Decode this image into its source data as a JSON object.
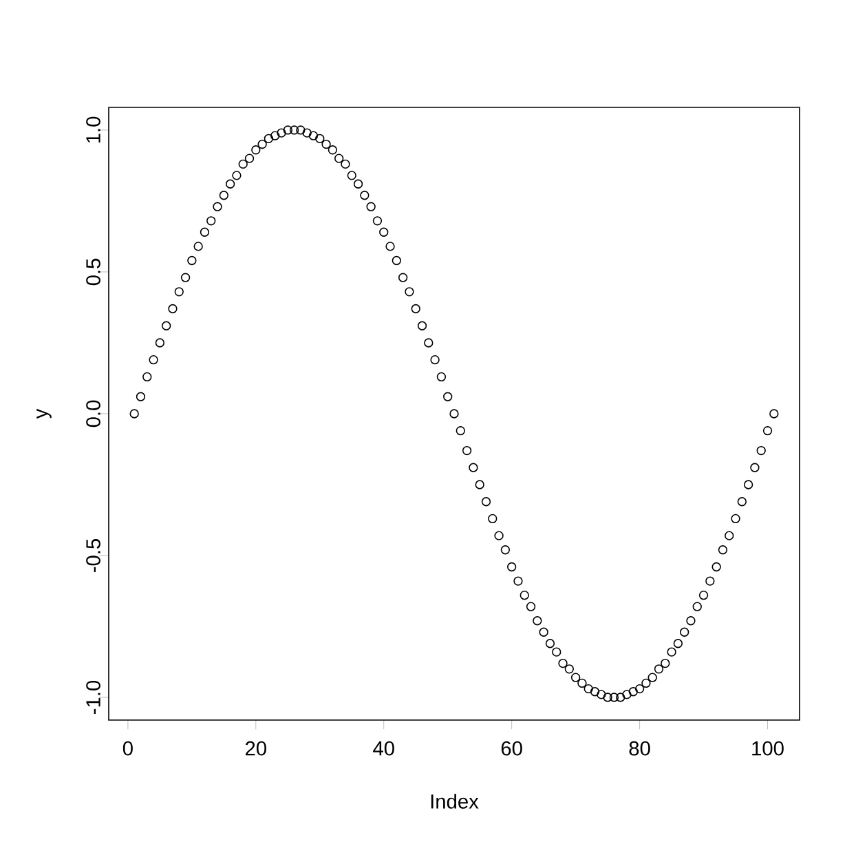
{
  "chart_data": {
    "type": "scatter",
    "xlabel": "Index",
    "ylabel": "y",
    "x": [
      1,
      2,
      3,
      4,
      5,
      6,
      7,
      8,
      9,
      10,
      11,
      12,
      13,
      14,
      15,
      16,
      17,
      18,
      19,
      20,
      21,
      22,
      23,
      24,
      25,
      26,
      27,
      28,
      29,
      30,
      31,
      32,
      33,
      34,
      35,
      36,
      37,
      38,
      39,
      40,
      41,
      42,
      43,
      44,
      45,
      46,
      47,
      48,
      49,
      50,
      51,
      52,
      53,
      54,
      55,
      56,
      57,
      58,
      59,
      60,
      61,
      62,
      63,
      64,
      65,
      66,
      67,
      68,
      69,
      70,
      71,
      72,
      73,
      74,
      75,
      76,
      77,
      78,
      79,
      80,
      81,
      82,
      83,
      84,
      85,
      86,
      87,
      88,
      89,
      90,
      91,
      92,
      93,
      94,
      95,
      96,
      97,
      98,
      99,
      100,
      101
    ],
    "values": [
      0,
      0.06,
      0.13,
      0.19,
      0.25,
      0.31,
      0.37,
      0.43,
      0.48,
      0.54,
      0.59,
      0.64,
      0.68,
      0.73,
      0.77,
      0.81,
      0.84,
      0.88,
      0.9,
      0.93,
      0.95,
      0.97,
      0.98,
      0.99,
      1,
      1,
      1,
      0.99,
      0.98,
      0.97,
      0.95,
      0.93,
      0.9,
      0.88,
      0.84,
      0.81,
      0.77,
      0.73,
      0.68,
      0.64,
      0.59,
      0.54,
      0.48,
      0.43,
      0.37,
      0.31,
      0.25,
      0.19,
      0.13,
      0.06,
      0,
      -0.06,
      -0.13,
      -0.19,
      -0.25,
      -0.31,
      -0.37,
      -0.43,
      -0.48,
      -0.54,
      -0.59,
      -0.64,
      -0.68,
      -0.73,
      -0.77,
      -0.81,
      -0.84,
      -0.88,
      -0.9,
      -0.93,
      -0.95,
      -0.97,
      -0.98,
      -0.99,
      -1,
      -1,
      -1,
      -0.99,
      -0.98,
      -0.97,
      -0.95,
      -0.93,
      -0.9,
      -0.88,
      -0.84,
      -0.81,
      -0.77,
      -0.73,
      -0.68,
      -0.64,
      -0.59,
      -0.54,
      -0.48,
      -0.43,
      -0.37,
      -0.31,
      -0.25,
      -0.19,
      -0.13,
      -0.06,
      0
    ],
    "color": "#000000",
    "marker": "circle",
    "xlim": [
      -3,
      105
    ],
    "ylim": [
      -1.08,
      1.08
    ],
    "xticks": [
      0,
      20,
      40,
      60,
      80,
      100
    ],
    "yticks": [
      {
        "value": -1,
        "label": "-1.0"
      },
      {
        "value": -0.5,
        "label": "-0.5"
      },
      {
        "value": 0,
        "label": "0.0"
      },
      {
        "value": 0.5,
        "label": "0.5"
      },
      {
        "value": 1,
        "label": "1.0"
      }
    ]
  }
}
